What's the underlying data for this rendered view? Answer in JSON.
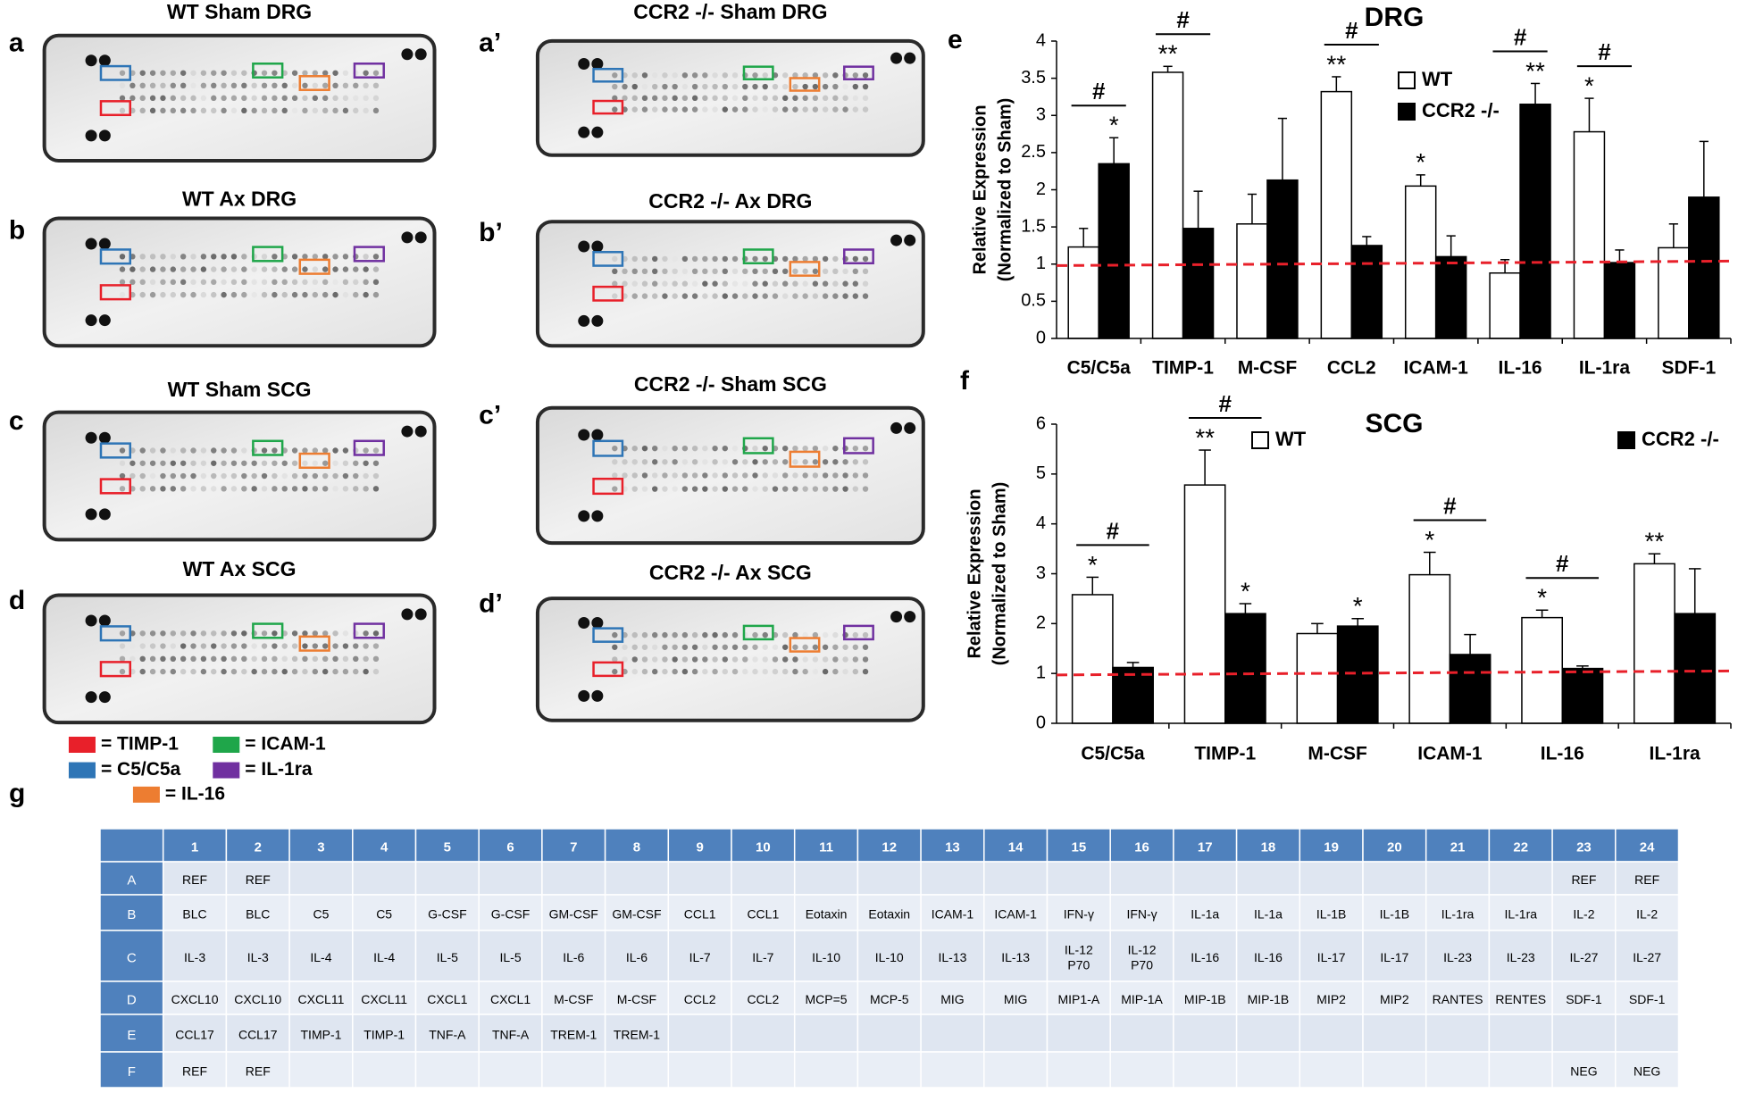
{
  "blots": [
    {
      "label": "a",
      "title": "WT Sham DRG"
    },
    {
      "label": "b",
      "title": "WT Ax DRG"
    },
    {
      "label": "c",
      "title": "WT Sham SCG"
    },
    {
      "label": "d",
      "title": "WT Ax SCG"
    },
    {
      "label": "a’",
      "title": "CCR2 -/- Sham DRG"
    },
    {
      "label": "b’",
      "title": "CCR2 -/- Ax DRG"
    },
    {
      "label": "c’",
      "title": "CCR2 -/- Sham SCG"
    },
    {
      "label": "d’",
      "title": "CCR2 -/- Ax SCG"
    }
  ],
  "blot_legend": [
    {
      "label": "= TIMP-1",
      "color": "#e8202a"
    },
    {
      "label": "= ICAM-1",
      "color": "#1fa64a"
    },
    {
      "label": "= C5/C5a",
      "color": "#2e75b6"
    },
    {
      "label": "= IL-1ra",
      "color": "#7030a0"
    },
    {
      "label": "= IL-16",
      "color": "#ed7d31"
    }
  ],
  "chart_data": [
    {
      "type": "bar",
      "panel_label": "e",
      "title": "DRG",
      "ylabel": [
        "Relative Expression",
        "(Normalized to Sham)"
      ],
      "categories": [
        "C5/C5a",
        "TIMP-1",
        "M-CSF",
        "CCL2",
        "ICAM-1",
        "IL-16",
        "IL-1ra",
        "SDF-1"
      ],
      "series": [
        {
          "name": "WT",
          "color": "#ffffff",
          "values": [
            1.23,
            3.58,
            1.54,
            3.32,
            2.05,
            0.88,
            2.78,
            1.22
          ],
          "errors": [
            0.25,
            0.08,
            0.4,
            0.2,
            0.15,
            0.18,
            0.45,
            0.32
          ],
          "significance": [
            null,
            "**",
            null,
            "**",
            "*",
            null,
            "*",
            null
          ]
        },
        {
          "name": "CCR2 -/-",
          "color": "#000000",
          "values": [
            2.35,
            1.48,
            2.13,
            1.25,
            1.1,
            3.15,
            1.02,
            1.9
          ],
          "errors": [
            0.35,
            0.5,
            0.83,
            0.12,
            0.28,
            0.28,
            0.17,
            0.75
          ],
          "significance": [
            "*",
            null,
            null,
            null,
            null,
            "**",
            null,
            null
          ]
        }
      ],
      "between_group_significance": [
        "#",
        "#",
        null,
        "#",
        null,
        "#",
        "#",
        null
      ],
      "ylim": [
        0,
        4
      ],
      "yticks": [
        0,
        0.5,
        1,
        1.5,
        2,
        2.5,
        3,
        3.5,
        4
      ],
      "reference_line": {
        "values": [
          0.98,
          1.04
        ],
        "color": "#e8202a"
      }
    },
    {
      "type": "bar",
      "panel_label": "f",
      "title": "SCG",
      "ylabel": [
        "Relative Expression",
        "(Normalized to Sham)"
      ],
      "categories": [
        "C5/C5a",
        "TIMP-1",
        "M-CSF",
        "ICAM-1",
        "IL-16",
        "IL-1ra"
      ],
      "series": [
        {
          "name": "WT",
          "color": "#ffffff",
          "values": [
            2.58,
            4.78,
            1.8,
            2.98,
            2.12,
            3.2
          ],
          "errors": [
            0.35,
            0.7,
            0.2,
            0.45,
            0.15,
            0.2
          ],
          "significance": [
            "*",
            "**",
            null,
            "*",
            "*",
            "**"
          ]
        },
        {
          "name": "CCR2 -/-",
          "color": "#000000",
          "values": [
            1.12,
            2.2,
            1.95,
            1.38,
            1.1,
            2.2
          ],
          "errors": [
            0.1,
            0.2,
            0.15,
            0.4,
            0.05,
            0.9
          ],
          "significance": [
            null,
            "*",
            "*",
            null,
            null,
            null
          ]
        }
      ],
      "between_group_significance": [
        "#",
        "#",
        null,
        "#",
        "#",
        null
      ],
      "ylim": [
        0,
        6
      ],
      "yticks": [
        0,
        1,
        2,
        3,
        4,
        5,
        6
      ],
      "reference_line": {
        "values": [
          0.97,
          1.05
        ],
        "color": "#e8202a"
      }
    }
  ],
  "table": {
    "panel_label": "g",
    "columns": [
      "1",
      "2",
      "3",
      "4",
      "5",
      "6",
      "7",
      "8",
      "9",
      "10",
      "11",
      "12",
      "13",
      "14",
      "15",
      "16",
      "17",
      "18",
      "19",
      "20",
      "21",
      "22",
      "23",
      "24"
    ],
    "rows": [
      {
        "label": "A",
        "cells": [
          "REF",
          "REF",
          null,
          null,
          null,
          null,
          null,
          null,
          null,
          null,
          null,
          null,
          null,
          null,
          null,
          null,
          null,
          null,
          null,
          null,
          null,
          null,
          "REF",
          "REF"
        ]
      },
      {
        "label": "B",
        "cells": [
          "BLC",
          "BLC",
          "C5",
          "C5",
          "G-CSF",
          "G-CSF",
          "GM-CSF",
          "GM-CSF",
          "CCL1",
          "CCL1",
          "Eotaxin",
          "Eotaxin",
          "ICAM-1",
          "ICAM-1",
          "IFN-γ",
          "IFN-γ",
          "IL-1a",
          "IL-1a",
          "IL-1B",
          "IL-1B",
          "IL-1ra",
          "IL-1ra",
          "IL-2",
          "IL-2"
        ]
      },
      {
        "label": "C",
        "cells": [
          "IL-3",
          "IL-3",
          "IL-4",
          "IL-4",
          "IL-5",
          "IL-5",
          "IL-6",
          "IL-6",
          "IL-7",
          "IL-7",
          "IL-10",
          "IL-10",
          "IL-13",
          "IL-13",
          [
            "IL-12",
            "P70"
          ],
          [
            "IL-12",
            "P70"
          ],
          "IL-16",
          "IL-16",
          "IL-17",
          "IL-17",
          "IL-23",
          "IL-23",
          "IL-27",
          "IL-27"
        ]
      },
      {
        "label": "D",
        "cells": [
          "CXCL10",
          "CXCL10",
          "CXCL11",
          "CXCL11",
          "CXCL1",
          "CXCL1",
          "M-CSF",
          "M-CSF",
          "CCL2",
          "CCL2",
          "MCP=5",
          "MCP-5",
          "MIG",
          "MIG",
          "MIP1-A",
          "MIP-1A",
          "MIP-1B",
          "MIP-1B",
          "MIP2",
          "MIP2",
          "RANTES",
          "RENTES",
          "SDF-1",
          "SDF-1"
        ]
      },
      {
        "label": "E",
        "cells": [
          "CCL17",
          "CCL17",
          "TIMP-1",
          "TIMP-1",
          "TNF-A",
          "TNF-A",
          "TREM-1",
          "TREM-1",
          null,
          null,
          null,
          null,
          null,
          null,
          null,
          null,
          null,
          null,
          null,
          null,
          null,
          null,
          null,
          null
        ]
      },
      {
        "label": "F",
        "cells": [
          "REF",
          "REF",
          null,
          null,
          null,
          null,
          null,
          null,
          null,
          null,
          null,
          null,
          null,
          null,
          null,
          null,
          null,
          null,
          null,
          null,
          null,
          null,
          "NEG",
          "NEG"
        ]
      }
    ]
  }
}
